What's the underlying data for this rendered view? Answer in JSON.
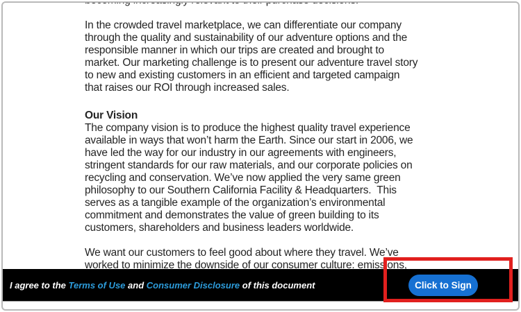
{
  "document": {
    "truncated_line": "becoming increasingly relevant to their purchase decisions.",
    "para1_lines": [
      "In the crowded travel marketplace, we can differentiate our company",
      "through the quality and sustainability of our adventure options and the",
      "responsible manner in which our trips are created and brought to",
      "market. Our marketing challenge is to present our adventure travel story",
      "to new and existing customers in an efficient and targeted campaign",
      "that raises our ROI through increased sales."
    ],
    "vision_heading": "Our Vision",
    "para2_lines": [
      "The company vision is to produce the highest quality travel experience",
      "available in ways that won’t harm the Earth. Since our start in 2006, we",
      "have led the way for our industry in our agreements with engineers,",
      "stringent standards for our raw materials, and our corporate policies on",
      "recycling and conservation. We’ve now applied the very same green",
      "philosophy to our Southern California Facility & Headquarters.  This",
      "serves as a tangible example of the organization’s environmental",
      "commitment and demonstrates the value of green building to its",
      "customers, shareholders and business leaders worldwide."
    ],
    "para3_lines": [
      "We want our customers to feel good about where they travel. We’ve",
      "worked to minimize the downside of our consumer culture: emissions,"
    ]
  },
  "footer": {
    "agree_prefix": "I agree to the ",
    "terms_link": "Terms of Use",
    "and_text": " and ",
    "disclosure_link": "Consumer Disclosure",
    "agree_suffix": " of this document",
    "sign_button_label": "Click to Sign"
  },
  "colors": {
    "button_blue": "#1670d2",
    "link_blue": "#2d9cdb",
    "highlight_red": "#e1201e",
    "footer_bar": "#000000",
    "frame_border": "#b9b9b9",
    "document_text": "#242424"
  }
}
